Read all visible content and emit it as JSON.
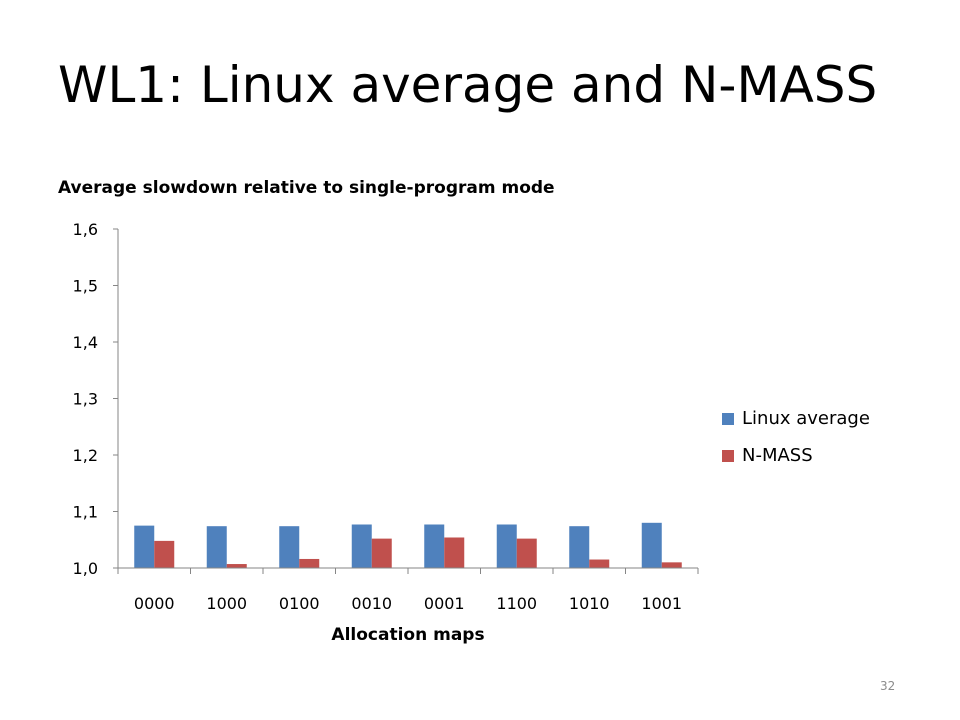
{
  "slide": {
    "title": "WL1: Linux average and N-MASS",
    "page_number": "32"
  },
  "chart_data": {
    "type": "bar",
    "title": "Average slowdown relative to single-program mode",
    "xlabel": "Allocation maps",
    "ylabel": "",
    "categories": [
      "0000",
      "1000",
      "0100",
      "0010",
      "0001",
      "1100",
      "1010",
      "1001"
    ],
    "series": [
      {
        "name": "Linux average",
        "color": "#4f81bd",
        "values": [
          1.075,
          1.074,
          1.074,
          1.077,
          1.077,
          1.077,
          1.074,
          1.08
        ]
      },
      {
        "name": "N-MASS",
        "color": "#c0504d",
        "values": [
          1.048,
          1.007,
          1.016,
          1.052,
          1.054,
          1.052,
          1.015,
          1.01
        ]
      }
    ],
    "ylim": [
      1.0,
      1.6
    ],
    "yticks": [
      "1,0",
      "1,1",
      "1,2",
      "1,3",
      "1,4",
      "1,5",
      "1,6"
    ],
    "grid": false,
    "legend_position": "right"
  }
}
